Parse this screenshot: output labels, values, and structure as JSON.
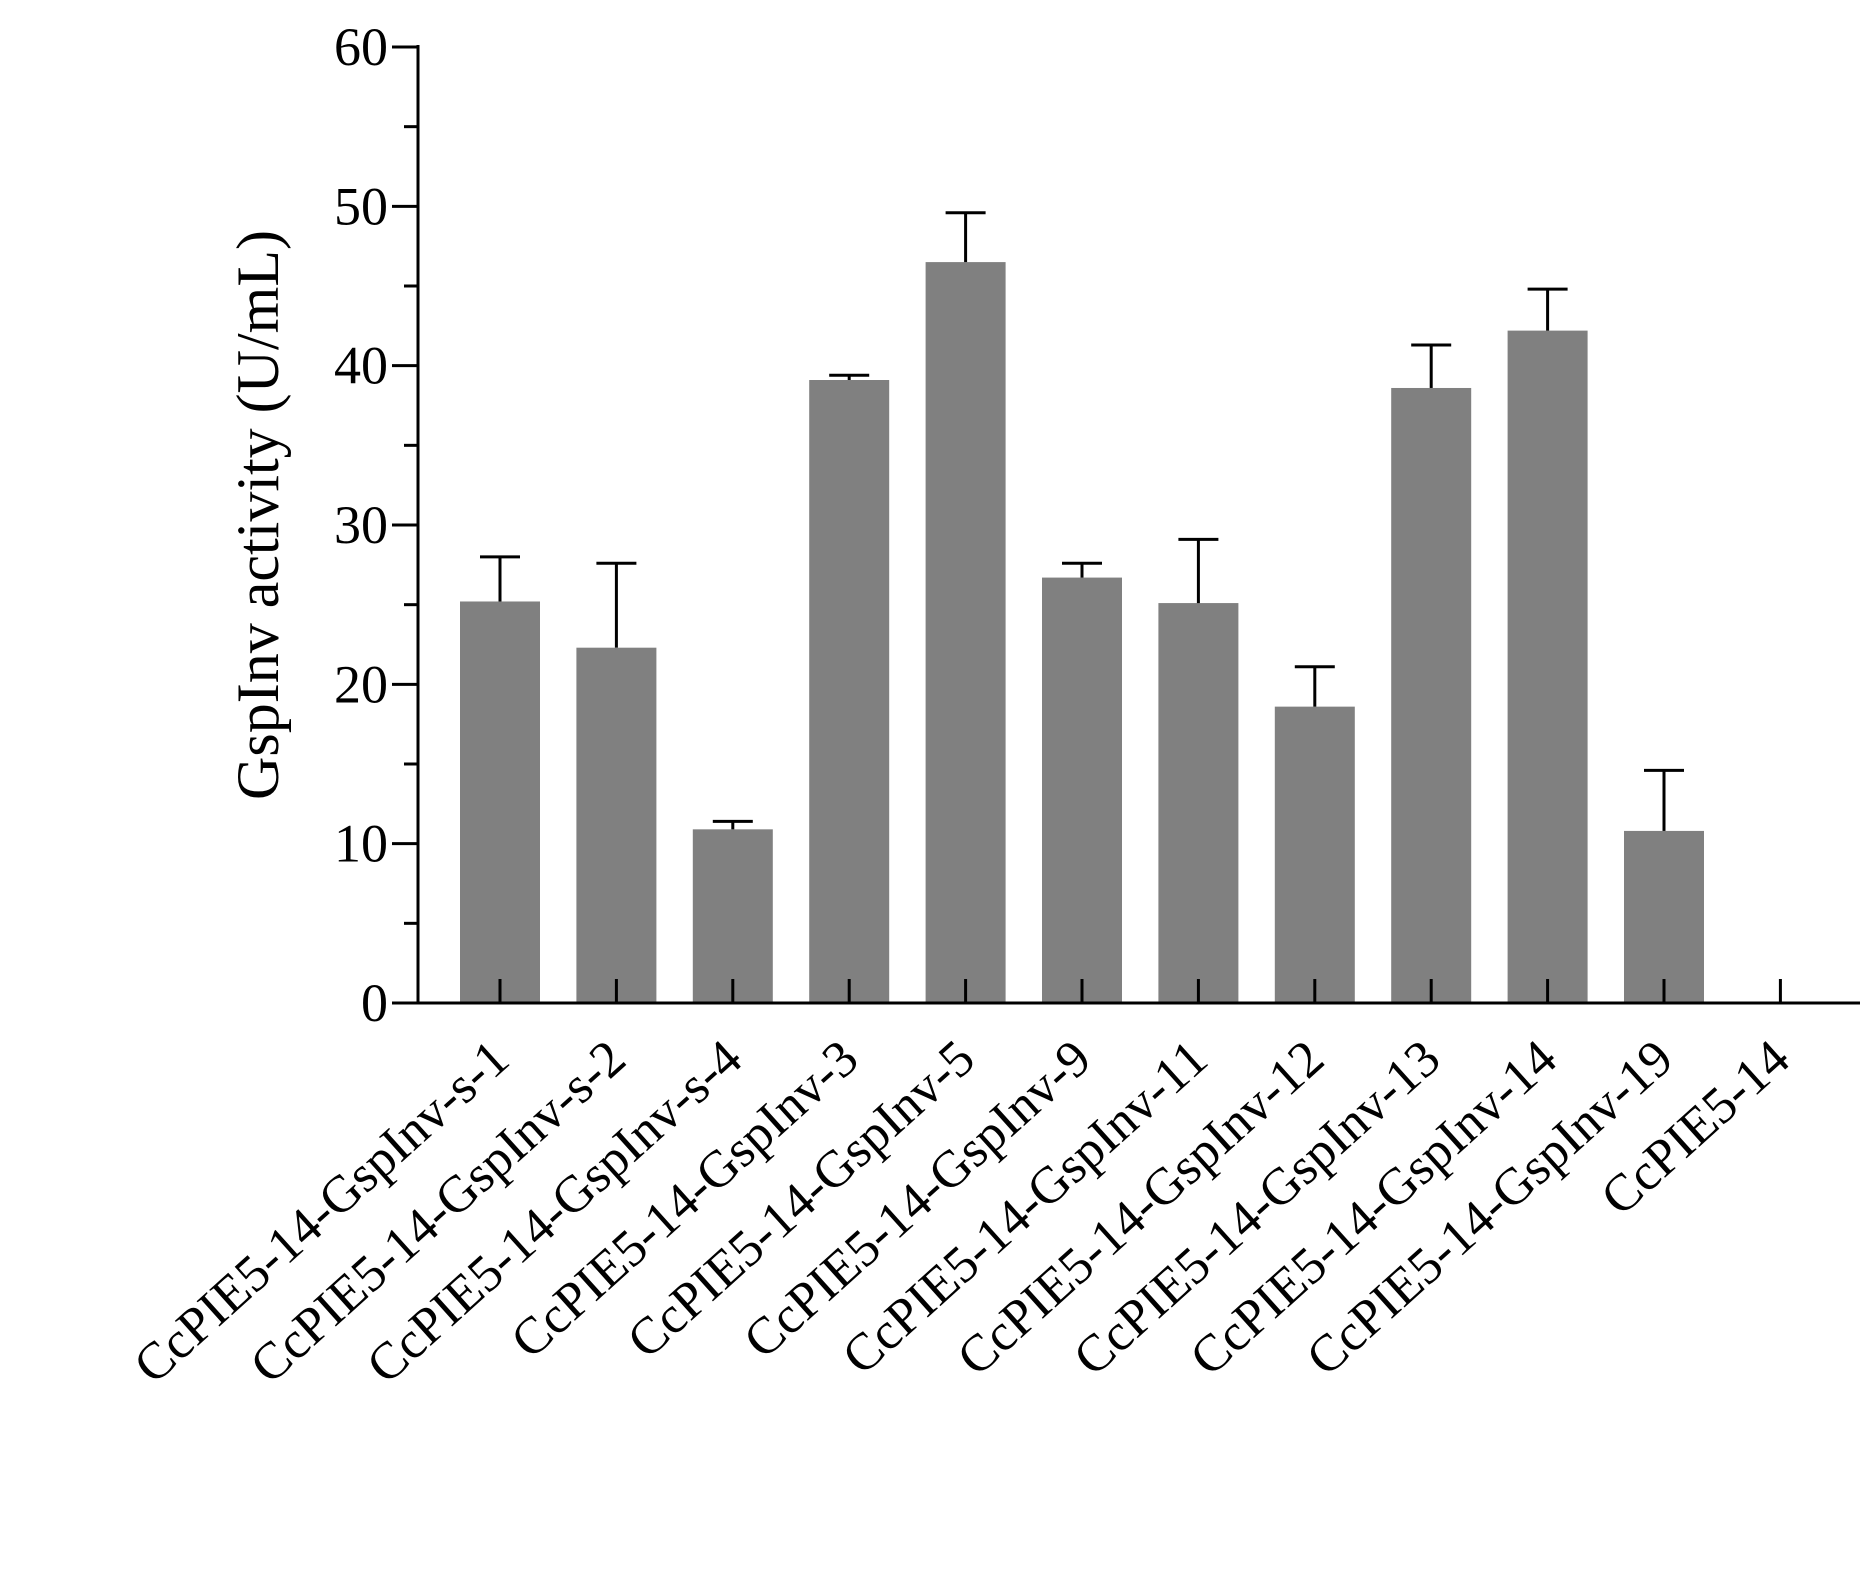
{
  "chart_data": {
    "type": "bar",
    "title": "",
    "xlabel": "",
    "ylabel": "GspInv activity (U/mL)",
    "ylim": [
      0,
      60
    ],
    "yticks": [
      0,
      10,
      20,
      30,
      40,
      50,
      60
    ],
    "yticks_minor": [
      5,
      15,
      25,
      35,
      45,
      55
    ],
    "grid": false,
    "categories": [
      "CcPIE5-14-GspInv-s-1",
      "CcPIE5-14-GspInv-s-2",
      "CcPIE5-14-GspInv-s-4",
      "CcPIE5-14-GspInv-3",
      "CcPIE5-14-GspInv-5",
      "CcPIE5-14-GspInv-9",
      "CcPIE5-14-GspInv-11",
      "CcPIE5-14-GspInv-12",
      "CcPIE5-14-GspInv-13",
      "CcPIE5-14-GspInv-14",
      "CcPIE5-14-GspInv-19",
      "CcPIE5-14"
    ],
    "values": [
      25.2,
      22.3,
      10.9,
      39.1,
      46.5,
      26.7,
      25.1,
      18.6,
      38.6,
      42.2,
      10.8,
      0
    ],
    "errors": [
      2.8,
      5.3,
      0.5,
      0.3,
      3.1,
      0.9,
      4.0,
      2.5,
      2.7,
      2.6,
      3.8,
      0
    ],
    "bar_color": "#808080"
  }
}
